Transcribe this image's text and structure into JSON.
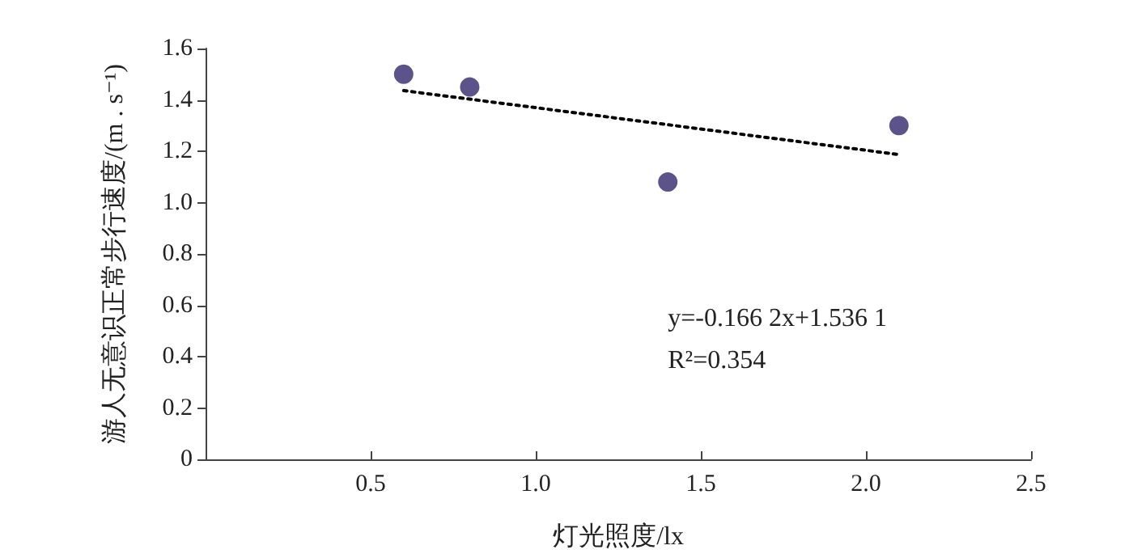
{
  "chart_data": {
    "type": "scatter",
    "xlabel": "灯光照度/lx",
    "ylabel": "游人无意识正常步行速度/(m . s⁻¹)",
    "x": [
      0.6,
      0.8,
      1.4,
      2.1
    ],
    "series": [
      {
        "color": "#35286e",
        "marker": "circle",
        "values": [
          1.5,
          1.45,
          1.08,
          1.3
        ]
      },
      {
        "type": "line",
        "color": "#000000",
        "x": [
          0.6,
          2.1
        ],
        "values": [
          1.436,
          1.187
        ],
        "line_style": "dotted",
        "marker": "none"
      }
    ],
    "xlim": [
      0,
      2.5
    ],
    "xticks": [
      {
        "value": 0,
        "label": null
      },
      0.5,
      {
        "value": 1,
        "label": "1.0"
      },
      1.5,
      {
        "value": 2,
        "label": "2.0"
      },
      2.5
    ],
    "ylim": [
      0,
      1.6
    ],
    "yticks": [
      0,
      0.2,
      0.4,
      0.6,
      0.8,
      {
        "value": 1,
        "label": "1.0"
      },
      1.2,
      1.4,
      1.6
    ],
    "annotations": [
      "y=-0.166 2x+1.536 1",
      "R²=0.354"
    ],
    "grid": false
  }
}
